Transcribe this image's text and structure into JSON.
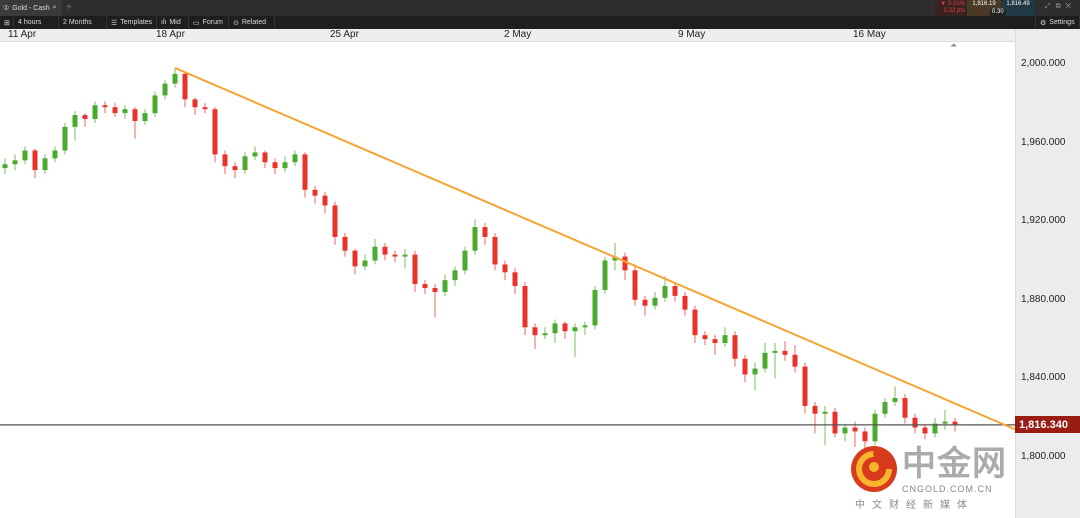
{
  "window": {
    "tab_title": "Gold - Cash",
    "new_tab": "+",
    "change_pct": "▼ 0.01%",
    "change_pts": "0.32 pts",
    "bid": "1,816.19",
    "ask": "1,816.49",
    "spread": "0.30",
    "settings": "Settings"
  },
  "toolbar": {
    "interval": "4 hours",
    "range": "2 Months",
    "templates": "Templates",
    "price_type": "Mid",
    "forum": "Forum",
    "related": "Related"
  },
  "colors": {
    "up": "#4aaa2e",
    "down": "#e8332a",
    "trendline": "#f5a431",
    "price_tag": "#9b1c13"
  },
  "watermark": {
    "logo_text": "中金网",
    "url": "CNGOLD.COM.CN",
    "tagline": "中文财经新媒体"
  },
  "chart_data": {
    "type": "candlestick",
    "interval": "4 hours",
    "x_ticks": [
      {
        "label": "11 Apr",
        "index": 0
      },
      {
        "label": "18 Apr",
        "index": 14.8
      },
      {
        "label": "25 Apr",
        "index": 32.2
      },
      {
        "label": "2 May",
        "index": 49.6
      },
      {
        "label": "9 May",
        "index": 67
      },
      {
        "label": "16 May",
        "index": 84.5
      }
    ],
    "y_ticks": [
      "2,000.000",
      "1,960.000",
      "1,920.000",
      "1,880.000",
      "1,840.000",
      "1,800.000"
    ],
    "y_tick_values": [
      2000,
      1960,
      1920,
      1880,
      1840,
      1800
    ],
    "current_price": 1816.34,
    "current_price_label": "1,816.340",
    "trendline": {
      "from": [
        17,
        1998
      ],
      "to": [
        101.5,
        1813
      ]
    },
    "ohlc": [
      [
        1947,
        1952,
        1944,
        1949
      ],
      [
        1949,
        1954,
        1946,
        1951
      ],
      [
        1951,
        1958,
        1949,
        1956
      ],
      [
        1956,
        1957,
        1942,
        1946
      ],
      [
        1946,
        1954,
        1944,
        1952
      ],
      [
        1952,
        1958,
        1950,
        1956
      ],
      [
        1956,
        1970,
        1954,
        1968
      ],
      [
        1968,
        1976,
        1961,
        1974
      ],
      [
        1974,
        1975,
        1968,
        1972
      ],
      [
        1972,
        1981,
        1970,
        1979
      ],
      [
        1979,
        1981,
        1975,
        1978
      ],
      [
        1978,
        1980,
        1973,
        1975
      ],
      [
        1975,
        1979,
        1972,
        1977
      ],
      [
        1977,
        1978,
        1962,
        1971
      ],
      [
        1971,
        1977,
        1969,
        1975
      ],
      [
        1975,
        1986,
        1973,
        1984
      ],
      [
        1984,
        1992,
        1982,
        1990
      ],
      [
        1990,
        1998,
        1988,
        1995
      ],
      [
        1995,
        1996,
        1978,
        1982
      ],
      [
        1982,
        1983,
        1974,
        1978
      ],
      [
        1978,
        1980,
        1975,
        1977
      ],
      [
        1977,
        1978,
        1950,
        1954
      ],
      [
        1954,
        1956,
        1944,
        1948
      ],
      [
        1948,
        1950,
        1942,
        1946
      ],
      [
        1946,
        1955,
        1944,
        1953
      ],
      [
        1953,
        1958,
        1951,
        1955
      ],
      [
        1955,
        1956,
        1947,
        1950
      ],
      [
        1950,
        1952,
        1944,
        1947
      ],
      [
        1947,
        1953,
        1945,
        1950
      ],
      [
        1950,
        1956,
        1948,
        1954
      ],
      [
        1954,
        1955,
        1932,
        1936
      ],
      [
        1936,
        1938,
        1929,
        1933
      ],
      [
        1933,
        1935,
        1924,
        1928
      ],
      [
        1928,
        1930,
        1908,
        1912
      ],
      [
        1912,
        1914,
        1902,
        1905
      ],
      [
        1905,
        1906,
        1893,
        1897
      ],
      [
        1897,
        1903,
        1895,
        1900
      ],
      [
        1900,
        1911,
        1898,
        1907
      ],
      [
        1907,
        1909,
        1900,
        1903
      ],
      [
        1903,
        1905,
        1899,
        1902
      ],
      [
        1902,
        1906,
        1896,
        1903
      ],
      [
        1903,
        1905,
        1884,
        1888
      ],
      [
        1888,
        1890,
        1883,
        1886
      ],
      [
        1886,
        1888,
        1871,
        1884
      ],
      [
        1884,
        1893,
        1882,
        1890
      ],
      [
        1890,
        1897,
        1887,
        1895
      ],
      [
        1895,
        1907,
        1893,
        1905
      ],
      [
        1905,
        1921,
        1903,
        1917
      ],
      [
        1917,
        1919,
        1908,
        1912
      ],
      [
        1912,
        1914,
        1895,
        1898
      ],
      [
        1898,
        1900,
        1890,
        1894
      ],
      [
        1894,
        1896,
        1883,
        1887
      ],
      [
        1887,
        1889,
        1862,
        1866
      ],
      [
        1866,
        1868,
        1855,
        1862
      ],
      [
        1862,
        1866,
        1860,
        1863
      ],
      [
        1863,
        1870,
        1858,
        1868
      ],
      [
        1868,
        1869,
        1860,
        1864
      ],
      [
        1864,
        1868,
        1851,
        1866
      ],
      [
        1866,
        1869,
        1862,
        1867
      ],
      [
        1867,
        1887,
        1865,
        1885
      ],
      [
        1885,
        1902,
        1883,
        1900
      ],
      [
        1900,
        1909,
        1895,
        1902
      ],
      [
        1902,
        1904,
        1890,
        1895
      ],
      [
        1895,
        1897,
        1877,
        1880
      ],
      [
        1880,
        1882,
        1872,
        1877
      ],
      [
        1877,
        1884,
        1875,
        1881
      ],
      [
        1881,
        1892,
        1879,
        1887
      ],
      [
        1887,
        1889,
        1879,
        1882
      ],
      [
        1882,
        1884,
        1872,
        1875
      ],
      [
        1875,
        1877,
        1858,
        1862
      ],
      [
        1862,
        1864,
        1857,
        1860
      ],
      [
        1860,
        1862,
        1852,
        1858
      ],
      [
        1858,
        1866,
        1856,
        1862
      ],
      [
        1862,
        1864,
        1846,
        1850
      ],
      [
        1850,
        1852,
        1838,
        1842
      ],
      [
        1842,
        1848,
        1834,
        1845
      ],
      [
        1845,
        1858,
        1843,
        1853
      ],
      [
        1853,
        1858,
        1840,
        1854
      ],
      [
        1854,
        1859,
        1849,
        1852
      ],
      [
        1852,
        1857,
        1843,
        1846
      ],
      [
        1846,
        1848,
        1822,
        1826
      ],
      [
        1826,
        1828,
        1812,
        1822
      ],
      [
        1822,
        1826,
        1806,
        1823
      ],
      [
        1823,
        1825,
        1810,
        1812
      ],
      [
        1812,
        1817,
        1808,
        1815
      ],
      [
        1815,
        1818,
        1805,
        1813
      ],
      [
        1813,
        1815,
        1797,
        1808
      ],
      [
        1808,
        1824,
        1806,
        1822
      ],
      [
        1822,
        1830,
        1820,
        1828
      ],
      [
        1828,
        1836,
        1826,
        1830
      ],
      [
        1830,
        1832,
        1817,
        1820
      ],
      [
        1820,
        1822,
        1812,
        1815
      ],
      [
        1815,
        1817,
        1809,
        1812
      ],
      [
        1812,
        1820,
        1810,
        1817
      ],
      [
        1817,
        1824,
        1814,
        1818
      ],
      [
        1818,
        1820,
        1813,
        1816.34
      ]
    ]
  }
}
